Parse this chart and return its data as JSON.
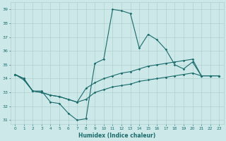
{
  "xlabel": "Humidex (Indice chaleur)",
  "bg_color": "#cce8e8",
  "grid_color": "#b0d0d0",
  "line_color": "#1a6b6b",
  "x_data": [
    0,
    1,
    2,
    3,
    4,
    5,
    6,
    7,
    8,
    9,
    10,
    11,
    12,
    13,
    14,
    15,
    16,
    17,
    18,
    19,
    20,
    21,
    22,
    23
  ],
  "main_line": [
    34.3,
    34.0,
    33.1,
    33.1,
    32.3,
    32.2,
    31.5,
    31.0,
    31.1,
    35.1,
    35.4,
    39.0,
    38.9,
    38.7,
    36.2,
    37.2,
    36.8,
    36.1,
    35.0,
    34.7,
    35.2,
    34.2,
    34.2,
    34.2
  ],
  "line2": [
    34.3,
    34.0,
    33.1,
    33.0,
    32.8,
    32.7,
    32.5,
    32.3,
    33.3,
    33.7,
    34.0,
    34.2,
    34.4,
    34.5,
    34.7,
    34.9,
    35.0,
    35.1,
    35.2,
    35.3,
    35.4,
    34.2,
    34.2,
    34.2
  ],
  "line3": [
    34.3,
    33.9,
    33.1,
    33.0,
    32.8,
    32.7,
    32.5,
    32.3,
    32.5,
    33.0,
    33.2,
    33.4,
    33.5,
    33.6,
    33.8,
    33.9,
    34.0,
    34.1,
    34.2,
    34.3,
    34.4,
    34.2,
    34.2,
    34.2
  ],
  "ylim": [
    30.7,
    39.5
  ],
  "xlim": [
    -0.5,
    23.5
  ],
  "yticks": [
    31,
    32,
    33,
    34,
    35,
    36,
    37,
    38,
    39
  ],
  "xticks": [
    0,
    1,
    2,
    3,
    4,
    5,
    6,
    7,
    8,
    9,
    10,
    11,
    12,
    13,
    14,
    15,
    16,
    17,
    18,
    19,
    20,
    21,
    22,
    23
  ]
}
